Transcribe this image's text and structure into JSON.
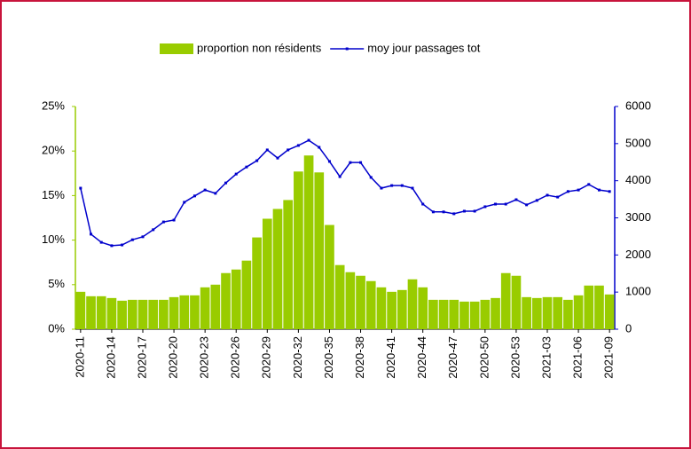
{
  "chart_data": {
    "type": "bar-line",
    "categories": [
      "2020-11",
      null,
      null,
      "2020-14",
      null,
      null,
      "2020-17",
      null,
      null,
      "2020-20",
      null,
      null,
      "2020-23",
      null,
      null,
      "2020-26",
      null,
      null,
      "2020-29",
      null,
      null,
      "2020-32",
      null,
      null,
      "2020-35",
      null,
      null,
      "2020-38",
      null,
      null,
      "2020-41",
      null,
      null,
      "2020-44",
      null,
      null,
      "2020-47",
      null,
      null,
      "2020-50",
      null,
      null,
      "2020-53",
      null,
      null,
      "2021-03",
      null,
      null,
      "2021-06",
      null,
      null,
      "2021-09"
    ],
    "series": [
      {
        "name": "proportion non résidents",
        "type": "bar",
        "color": "#99cc00",
        "values": [
          4.2,
          3.7,
          3.7,
          3.5,
          3.2,
          3.3,
          3.3,
          3.3,
          3.3,
          3.6,
          3.8,
          3.8,
          4.7,
          5.0,
          6.3,
          6.7,
          7.7,
          10.3,
          12.4,
          13.5,
          14.5,
          17.7,
          19.5,
          17.6,
          11.7,
          7.2,
          6.4,
          6.0,
          5.4,
          4.7,
          4.2,
          4.4,
          5.6,
          4.7,
          3.3,
          3.3,
          3.3,
          3.1,
          3.1,
          3.3,
          3.5,
          6.3,
          6.0,
          3.6,
          3.5,
          3.6,
          3.6,
          3.3,
          3.8,
          4.9,
          4.9,
          3.9
        ]
      },
      {
        "name": "moy jour passages tot",
        "type": "line",
        "axis": "y2",
        "color": "#0000cc",
        "values": [
          3800,
          2560,
          2340,
          2250,
          2270,
          2410,
          2490,
          2680,
          2890,
          2940,
          3420,
          3590,
          3750,
          3660,
          3940,
          4180,
          4370,
          4540,
          4830,
          4610,
          4830,
          4950,
          5090,
          4900,
          4520,
          4110,
          4490,
          4490,
          4090,
          3800,
          3870,
          3870,
          3800,
          3370,
          3160,
          3160,
          3110,
          3180,
          3180,
          3300,
          3370,
          3370,
          3490,
          3350,
          3470,
          3610,
          3560,
          3710,
          3750,
          3900,
          3750,
          3710
        ]
      }
    ],
    "ylim": [
      0,
      25
    ],
    "yticks": [
      {
        "value": 0,
        "label": "0%"
      },
      {
        "value": 5,
        "label": "5%"
      },
      {
        "value": 10,
        "label": "10%"
      },
      {
        "value": 15,
        "label": "15%"
      },
      {
        "value": 20,
        "label": "20%"
      },
      {
        "value": 25,
        "label": "25%"
      }
    ],
    "y2lim": [
      0,
      6000
    ],
    "y2ticks": [
      0,
      1000,
      2000,
      3000,
      4000,
      5000,
      6000
    ],
    "legend": "top"
  }
}
